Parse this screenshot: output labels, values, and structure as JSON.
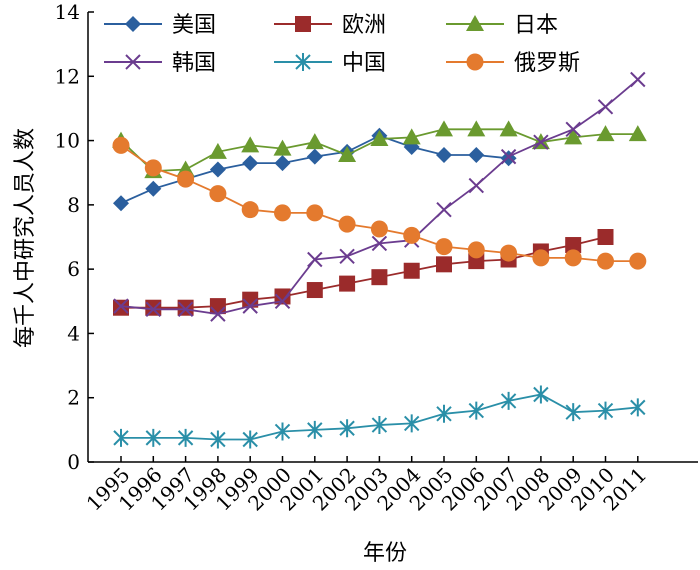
{
  "chart_data": {
    "type": "line",
    "title": "",
    "xlabel": "年份",
    "ylabel": "每千人中研究人员人数",
    "ylim": [
      0,
      14
    ],
    "yticks": [
      0,
      2,
      4,
      6,
      8,
      10,
      12,
      14
    ],
    "categories": [
      "1995",
      "1996",
      "1997",
      "1998",
      "1999",
      "2000",
      "2001",
      "2002",
      "2003",
      "2004",
      "2005",
      "2006",
      "2007",
      "2008",
      "2009",
      "2010",
      "2011"
    ],
    "legend_position": "top",
    "series": [
      {
        "name": "美国",
        "color": "#2b5f9e",
        "marker": "diamond",
        "values": [
          8.05,
          8.5,
          8.8,
          9.1,
          9.3,
          9.3,
          9.5,
          9.65,
          10.15,
          9.8,
          9.55,
          9.55,
          9.45,
          null,
          null,
          null,
          null
        ]
      },
      {
        "name": "欧洲",
        "color": "#9b2b2b",
        "marker": "square",
        "values": [
          4.8,
          4.8,
          4.8,
          4.85,
          5.05,
          5.15,
          5.35,
          5.55,
          5.75,
          5.95,
          6.15,
          6.25,
          6.3,
          6.55,
          6.75,
          7.0,
          null
        ]
      },
      {
        "name": "日本",
        "color": "#6a9a2f",
        "marker": "triangle",
        "values": [
          10.0,
          9.05,
          9.1,
          9.65,
          9.85,
          9.75,
          9.95,
          9.55,
          10.05,
          10.1,
          10.35,
          10.35,
          10.35,
          9.95,
          10.1,
          10.2,
          10.2
        ]
      },
      {
        "name": "韩国",
        "color": "#6b3c8f",
        "marker": "x",
        "values": [
          4.85,
          4.75,
          4.75,
          4.6,
          4.85,
          5.0,
          6.3,
          6.4,
          6.8,
          6.9,
          7.85,
          8.6,
          9.5,
          9.95,
          10.35,
          11.05,
          11.9
        ]
      },
      {
        "name": "中国",
        "color": "#2a8fa8",
        "marker": "star",
        "values": [
          0.75,
          0.75,
          0.75,
          0.7,
          0.7,
          0.95,
          1.0,
          1.05,
          1.15,
          1.2,
          1.5,
          1.6,
          1.9,
          2.1,
          1.55,
          1.6,
          1.7
        ]
      },
      {
        "name": "俄罗斯",
        "color": "#e47a2e",
        "marker": "circle",
        "values": [
          9.85,
          9.15,
          8.8,
          8.35,
          7.85,
          7.75,
          7.75,
          7.4,
          7.25,
          7.05,
          6.7,
          6.6,
          6.5,
          6.35,
          6.35,
          6.25,
          6.25
        ]
      }
    ]
  }
}
